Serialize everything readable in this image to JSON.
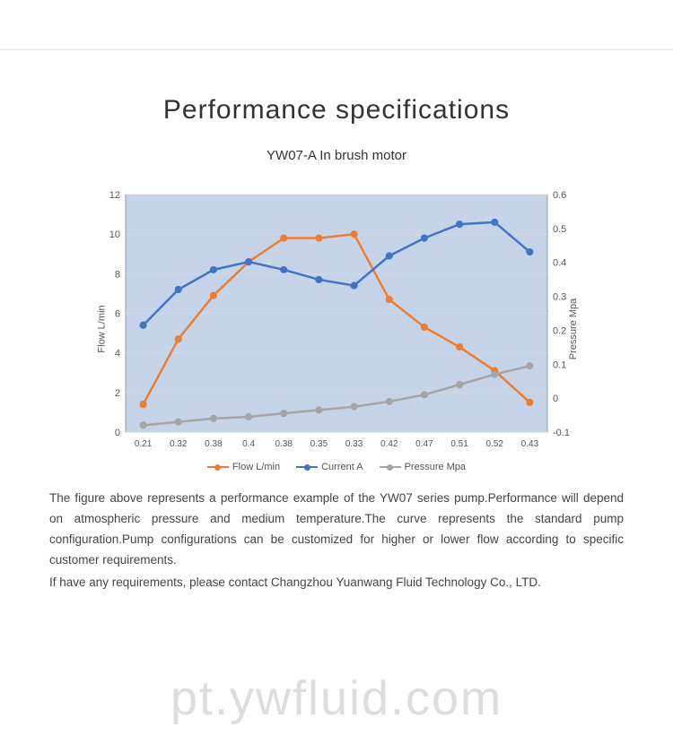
{
  "title": "Performance specifications",
  "title_fontsize": 30,
  "subtitle": "YW07-A In brush motor",
  "subtitle_fontsize": 15,
  "chart": {
    "type": "line",
    "background_color": "#c5d4e8",
    "plot_border_color": "#888888",
    "grid_color": "#d8d8d8",
    "categories": [
      "0.21",
      "0.32",
      "0.38",
      "0.4",
      "0.38",
      "0.35",
      "0.33",
      "0.42",
      "0.47",
      "0.51",
      "0.52",
      "0.43"
    ],
    "left_axis": {
      "label": "Flow L/min",
      "min": 0,
      "max": 12,
      "tick_step": 2,
      "tick_color": "#555555",
      "tick_fontsize": 11
    },
    "right_axis": {
      "label": "Pressure Mpa",
      "min": -0.1,
      "max": 0.6,
      "tick_step": 0.1,
      "tick_color": "#555555",
      "tick_fontsize": 11
    },
    "series": [
      {
        "name": "Flow L/min",
        "axis": "left",
        "color": "#ed7d31",
        "line_width": 2.5,
        "marker": "circle",
        "marker_size": 5,
        "values": [
          1.4,
          4.7,
          6.9,
          8.6,
          9.8,
          9.8,
          10.0,
          6.7,
          5.3,
          4.3,
          3.1,
          1.5
        ]
      },
      {
        "name": "Current A",
        "axis": "left",
        "color": "#4472c4",
        "line_width": 2.5,
        "marker": "circle",
        "marker_size": 5,
        "values": [
          5.4,
          7.2,
          8.2,
          8.6,
          8.2,
          7.7,
          7.4,
          8.9,
          9.8,
          10.5,
          10.6,
          9.1
        ]
      },
      {
        "name": "Pressure Mpa",
        "axis": "right",
        "color": "#a5a5a5",
        "line_width": 2.5,
        "marker": "circle",
        "marker_size": 5,
        "values": [
          -0.08,
          -0.07,
          -0.06,
          -0.055,
          -0.045,
          -0.035,
          -0.025,
          -0.01,
          0.01,
          0.04,
          0.07,
          0.095
        ]
      }
    ]
  },
  "legend": [
    {
      "label": "Flow L/min",
      "color": "#ed7d31"
    },
    {
      "label": "Current A",
      "color": "#4472c4"
    },
    {
      "label": "Pressure Mpa",
      "color": "#a5a5a5"
    }
  ],
  "body_text_1": "The figure above represents a performance example of the YW07 series pump.Performance will depend on atmospheric pressure and medium temperature.The curve represents the standard pump configuration.Pump configurations can be customized for higher or lower flow according to specific customer requirements.",
  "body_text_2": "If have any requirements, please contact Changzhou Yuanwang Fluid Technology Co., LTD.",
  "watermark": "pt.ywfluid.com"
}
